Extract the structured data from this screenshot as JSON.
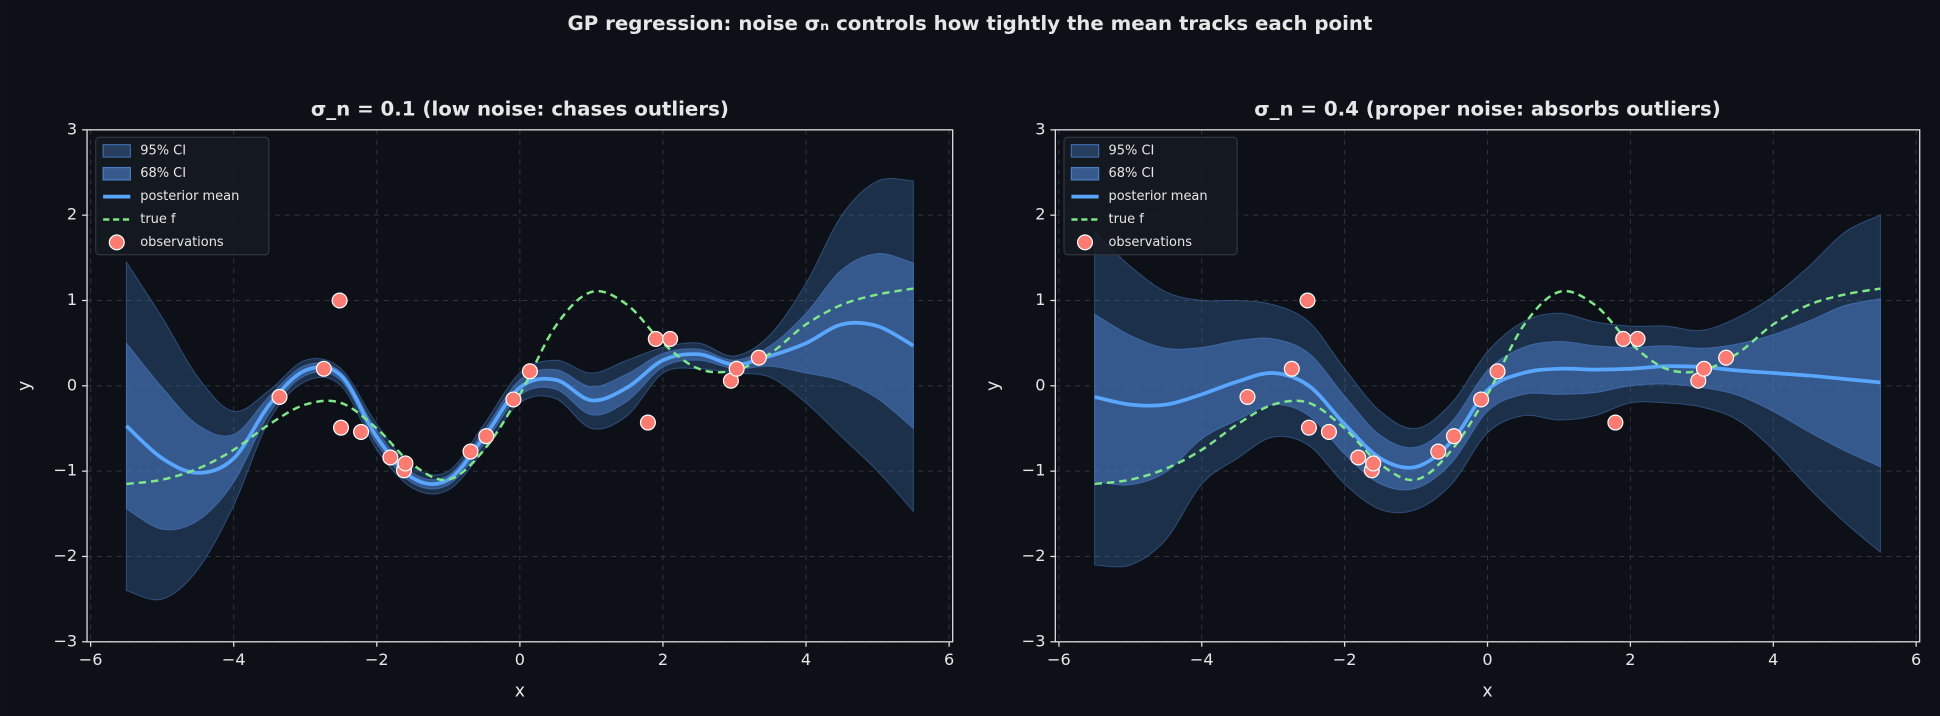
{
  "chart_data": {
    "title": "GP regression: noise σₙ controls how tightly the mean tracks each point",
    "charts": [
      {
        "type": "line",
        "title": "σ_n = 0.1 (low noise: chases outliers)",
        "xlabel": "x",
        "ylabel": "y",
        "xlim": [
          -6.05,
          6.05
        ],
        "ylim": [
          -3,
          3
        ],
        "xticks": [
          {
            "value": -6,
            "label": "−6"
          },
          {
            "value": -4,
            "label": "−4"
          },
          {
            "value": -2,
            "label": "−2"
          },
          0,
          2,
          4,
          6
        ],
        "yticks": [
          {
            "value": -3,
            "label": "−3"
          },
          {
            "value": -2,
            "label": "−2"
          },
          {
            "value": -1,
            "label": "−1"
          },
          0,
          1,
          2,
          3
        ],
        "grid": true,
        "legend": "upper left",
        "x": [
          -5.5,
          -5,
          -4.5,
          -4,
          -3.5,
          -3,
          -2.5,
          -2,
          -1.5,
          -1,
          -0.5,
          0,
          0.5,
          1,
          1.5,
          2,
          2.5,
          3,
          3.5,
          4,
          4.5,
          5,
          5.5
        ],
        "bands": [
          {
            "name": "95% CI",
            "color": "#3d6aa8",
            "upper": [
              1.45,
              0.8,
              0.1,
              -0.3,
              -0.05,
              0.3,
              0.2,
              -0.45,
              -0.95,
              -1.0,
              -0.45,
              0.15,
              0.3,
              0.15,
              0.3,
              0.45,
              0.5,
              0.35,
              0.6,
              1.2,
              2.0,
              2.4,
              2.4
            ],
            "lower": [
              -2.4,
              -2.5,
              -2.15,
              -1.4,
              -0.4,
              0.05,
              0.0,
              -0.75,
              -1.2,
              -1.22,
              -0.75,
              -0.2,
              -0.15,
              -0.5,
              -0.35,
              0.15,
              0.2,
              0.15,
              0.1,
              -0.2,
              -0.6,
              -1.0,
              -1.47
            ]
          },
          {
            "name": "68% CI",
            "color": "#4a7cc4",
            "upper": [
              0.5,
              -0.02,
              -0.46,
              -0.57,
              -0.12,
              0.24,
              0.16,
              -0.52,
              -1.02,
              -1.05,
              -0.52,
              0.07,
              0.19,
              -0.01,
              0.14,
              0.38,
              0.43,
              0.3,
              0.47,
              0.85,
              1.36,
              1.55,
              1.44
            ],
            "lower": [
              -1.44,
              -1.68,
              -1.58,
              -1.13,
              -0.32,
              0.12,
              0.06,
              -0.68,
              -1.14,
              -1.16,
              -0.68,
              -0.11,
              -0.04,
              -0.34,
              -0.18,
              0.22,
              0.3,
              0.2,
              0.23,
              0.15,
              0.06,
              -0.15,
              -0.5
            ]
          }
        ],
        "series": [
          {
            "name": "posterior mean",
            "color": "#58a6ff",
            "dashed": false,
            "values": [
              -0.47,
              -0.85,
              -1.02,
              -0.85,
              -0.22,
              0.18,
              0.12,
              -0.6,
              -1.08,
              -1.1,
              -0.6,
              -0.02,
              0.07,
              -0.17,
              -0.02,
              0.3,
              0.37,
              0.25,
              0.35,
              0.5,
              0.72,
              0.7,
              0.47
            ]
          },
          {
            "name": "true f",
            "color": "#7ee787",
            "dashed": true,
            "values": [
              -1.15,
              -1.1,
              -0.97,
              -0.75,
              -0.45,
              -0.22,
              -0.2,
              -0.5,
              -0.92,
              -1.1,
              -0.75,
              -0.1,
              0.7,
              1.1,
              0.95,
              0.5,
              0.2,
              0.18,
              0.38,
              0.72,
              0.95,
              1.07,
              1.14
            ]
          }
        ],
        "scatter": {
          "name": "observations",
          "color": "#ff7b72",
          "x": [
            -3.36,
            -2.74,
            -2.52,
            -2.5,
            -2.22,
            -1.81,
            -1.62,
            -1.6,
            -0.69,
            -0.47,
            -0.09,
            0.14,
            1.79,
            1.9,
            2.1,
            2.95,
            3.03,
            3.34
          ],
          "y": [
            -0.13,
            0.2,
            1.0,
            -0.49,
            -0.54,
            -0.84,
            -0.99,
            -0.91,
            -0.77,
            -0.59,
            -0.16,
            0.17,
            -0.43,
            0.55,
            0.55,
            0.06,
            0.2,
            0.33
          ]
        }
      },
      {
        "type": "line",
        "title": "σ_n = 0.4 (proper noise: absorbs outliers)",
        "xlabel": "x",
        "ylabel": "y",
        "xlim": [
          -6.05,
          6.05
        ],
        "ylim": [
          -3,
          3
        ],
        "xticks": [
          {
            "value": -6,
            "label": "−6"
          },
          {
            "value": -4,
            "label": "−4"
          },
          {
            "value": -2,
            "label": "−2"
          },
          0,
          2,
          4,
          6
        ],
        "yticks": [
          {
            "value": -3,
            "label": "−3"
          },
          {
            "value": -2,
            "label": "−2"
          },
          {
            "value": -1,
            "label": "−1"
          },
          0,
          1,
          2,
          3
        ],
        "grid": true,
        "legend": "upper left",
        "x": [
          -5.5,
          -5,
          -4.5,
          -4,
          -3.5,
          -3,
          -2.5,
          -2,
          -1.5,
          -1,
          -0.5,
          0,
          0.5,
          1,
          1.5,
          2,
          2.5,
          3,
          3.5,
          4,
          4.5,
          5,
          5.5
        ],
        "bands": [
          {
            "name": "95% CI",
            "color": "#3d6aa8",
            "upper": [
              1.8,
              1.4,
              1.1,
              1.0,
              1.0,
              0.95,
              0.75,
              0.2,
              -0.3,
              -0.5,
              -0.2,
              0.4,
              0.75,
              0.85,
              0.75,
              0.7,
              0.7,
              0.65,
              0.8,
              1.05,
              1.4,
              1.8,
              2.0
            ],
            "lower": [
              -2.1,
              -2.1,
              -1.8,
              -1.15,
              -0.85,
              -0.6,
              -0.7,
              -1.15,
              -1.45,
              -1.45,
              -1.15,
              -0.55,
              -0.35,
              -0.4,
              -0.35,
              -0.2,
              -0.2,
              -0.25,
              -0.4,
              -0.75,
              -1.2,
              -1.6,
              -1.95
            ]
          },
          {
            "name": "68% CI",
            "color": "#4a7cc4",
            "upper": [
              0.84,
              0.59,
              0.44,
              0.45,
              0.53,
              0.55,
              0.38,
              -0.12,
              -0.58,
              -0.72,
              -0.42,
              0.18,
              0.45,
              0.52,
              0.47,
              0.45,
              0.47,
              0.44,
              0.49,
              0.6,
              0.76,
              0.94,
              1.02
            ],
            "lower": [
              -1.12,
              -1.16,
              -1.01,
              -0.62,
              -0.4,
              -0.22,
              -0.35,
              -0.8,
              -1.15,
              -1.2,
              -0.9,
              -0.3,
              -0.1,
              -0.1,
              -0.08,
              0.0,
              0.02,
              -0.02,
              -0.11,
              -0.3,
              -0.54,
              -0.76,
              -0.95
            ]
          }
        ],
        "series": [
          {
            "name": "posterior mean",
            "color": "#58a6ff",
            "dashed": false,
            "values": [
              -0.13,
              -0.22,
              -0.22,
              -0.1,
              0.05,
              0.15,
              0.0,
              -0.45,
              -0.85,
              -0.95,
              -0.65,
              -0.05,
              0.15,
              0.2,
              0.19,
              0.2,
              0.23,
              0.22,
              0.18,
              0.15,
              0.12,
              0.08,
              0.04
            ]
          },
          {
            "name": "true f",
            "color": "#7ee787",
            "dashed": true,
            "values": [
              -1.15,
              -1.1,
              -0.97,
              -0.75,
              -0.45,
              -0.22,
              -0.2,
              -0.5,
              -0.92,
              -1.1,
              -0.75,
              -0.1,
              0.7,
              1.1,
              0.95,
              0.5,
              0.2,
              0.18,
              0.38,
              0.72,
              0.95,
              1.07,
              1.14
            ]
          }
        ],
        "scatter": {
          "name": "observations",
          "color": "#ff7b72",
          "x": [
            -3.36,
            -2.74,
            -2.52,
            -2.5,
            -2.22,
            -1.81,
            -1.62,
            -1.6,
            -0.69,
            -0.47,
            -0.09,
            0.14,
            1.79,
            1.9,
            2.1,
            2.95,
            3.03,
            3.34
          ],
          "y": [
            -0.13,
            0.2,
            1.0,
            -0.49,
            -0.54,
            -0.84,
            -0.99,
            -0.91,
            -0.77,
            -0.59,
            -0.16,
            0.17,
            -0.43,
            0.55,
            0.55,
            0.06,
            0.2,
            0.33
          ]
        }
      }
    ]
  }
}
